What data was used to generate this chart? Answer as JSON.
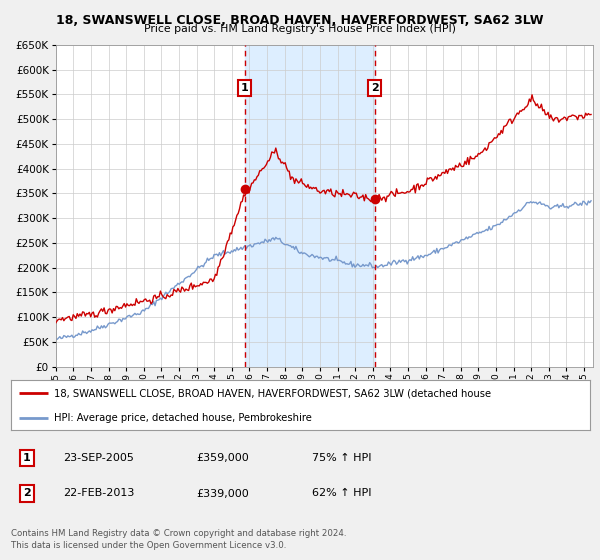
{
  "title": "18, SWANSWELL CLOSE, BROAD HAVEN, HAVERFORDWEST, SA62 3LW",
  "subtitle": "Price paid vs. HM Land Registry's House Price Index (HPI)",
  "legend_line1": "18, SWANSWELL CLOSE, BROAD HAVEN, HAVERFORDWEST, SA62 3LW (detached house",
  "legend_line2": "HPI: Average price, detached house, Pembrokeshire",
  "transaction1_date": "23-SEP-2005",
  "transaction1_price": "£359,000",
  "transaction1_hpi": "75% ↑ HPI",
  "transaction2_date": "22-FEB-2013",
  "transaction2_price": "£339,000",
  "transaction2_hpi": "62% ↑ HPI",
  "footer1": "Contains HM Land Registry data © Crown copyright and database right 2024.",
  "footer2": "This data is licensed under the Open Government Licence v3.0.",
  "red_color": "#cc0000",
  "blue_color": "#7799cc",
  "highlight_color": "#ddeeff",
  "grid_color": "#cccccc",
  "background_color": "#f0f0f0",
  "plot_bg_color": "#ffffff",
  "ylim": [
    0,
    650000
  ],
  "yticks": [
    0,
    50000,
    100000,
    150000,
    200000,
    250000,
    300000,
    350000,
    400000,
    450000,
    500000,
    550000,
    600000,
    650000
  ],
  "xmin": 1995.0,
  "xmax": 2025.5,
  "transaction1_x": 2005.73,
  "transaction1_y": 359000,
  "transaction2_x": 2013.12,
  "transaction2_y": 339000,
  "vline1_x": 2005.73,
  "vline2_x": 2013.12
}
